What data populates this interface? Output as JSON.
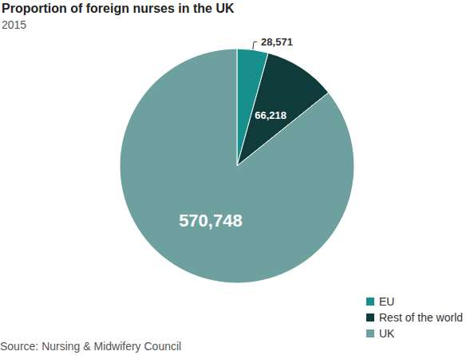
{
  "chart_data": {
    "type": "pie",
    "title": "Proportion of foreign nurses in the UK",
    "subtitle": "2015",
    "source": "Source: Nursing & Midwifery Council",
    "categories": [
      "EU",
      "Rest of the world",
      "UK"
    ],
    "values": [
      28571,
      66218,
      570748
    ],
    "value_labels": [
      "28,571",
      "66,218",
      "570,748"
    ],
    "colors": [
      "#17908d",
      "#0f3b3a",
      "#6fa0a0"
    ],
    "data_labels": true,
    "legend": "bottom-right"
  }
}
